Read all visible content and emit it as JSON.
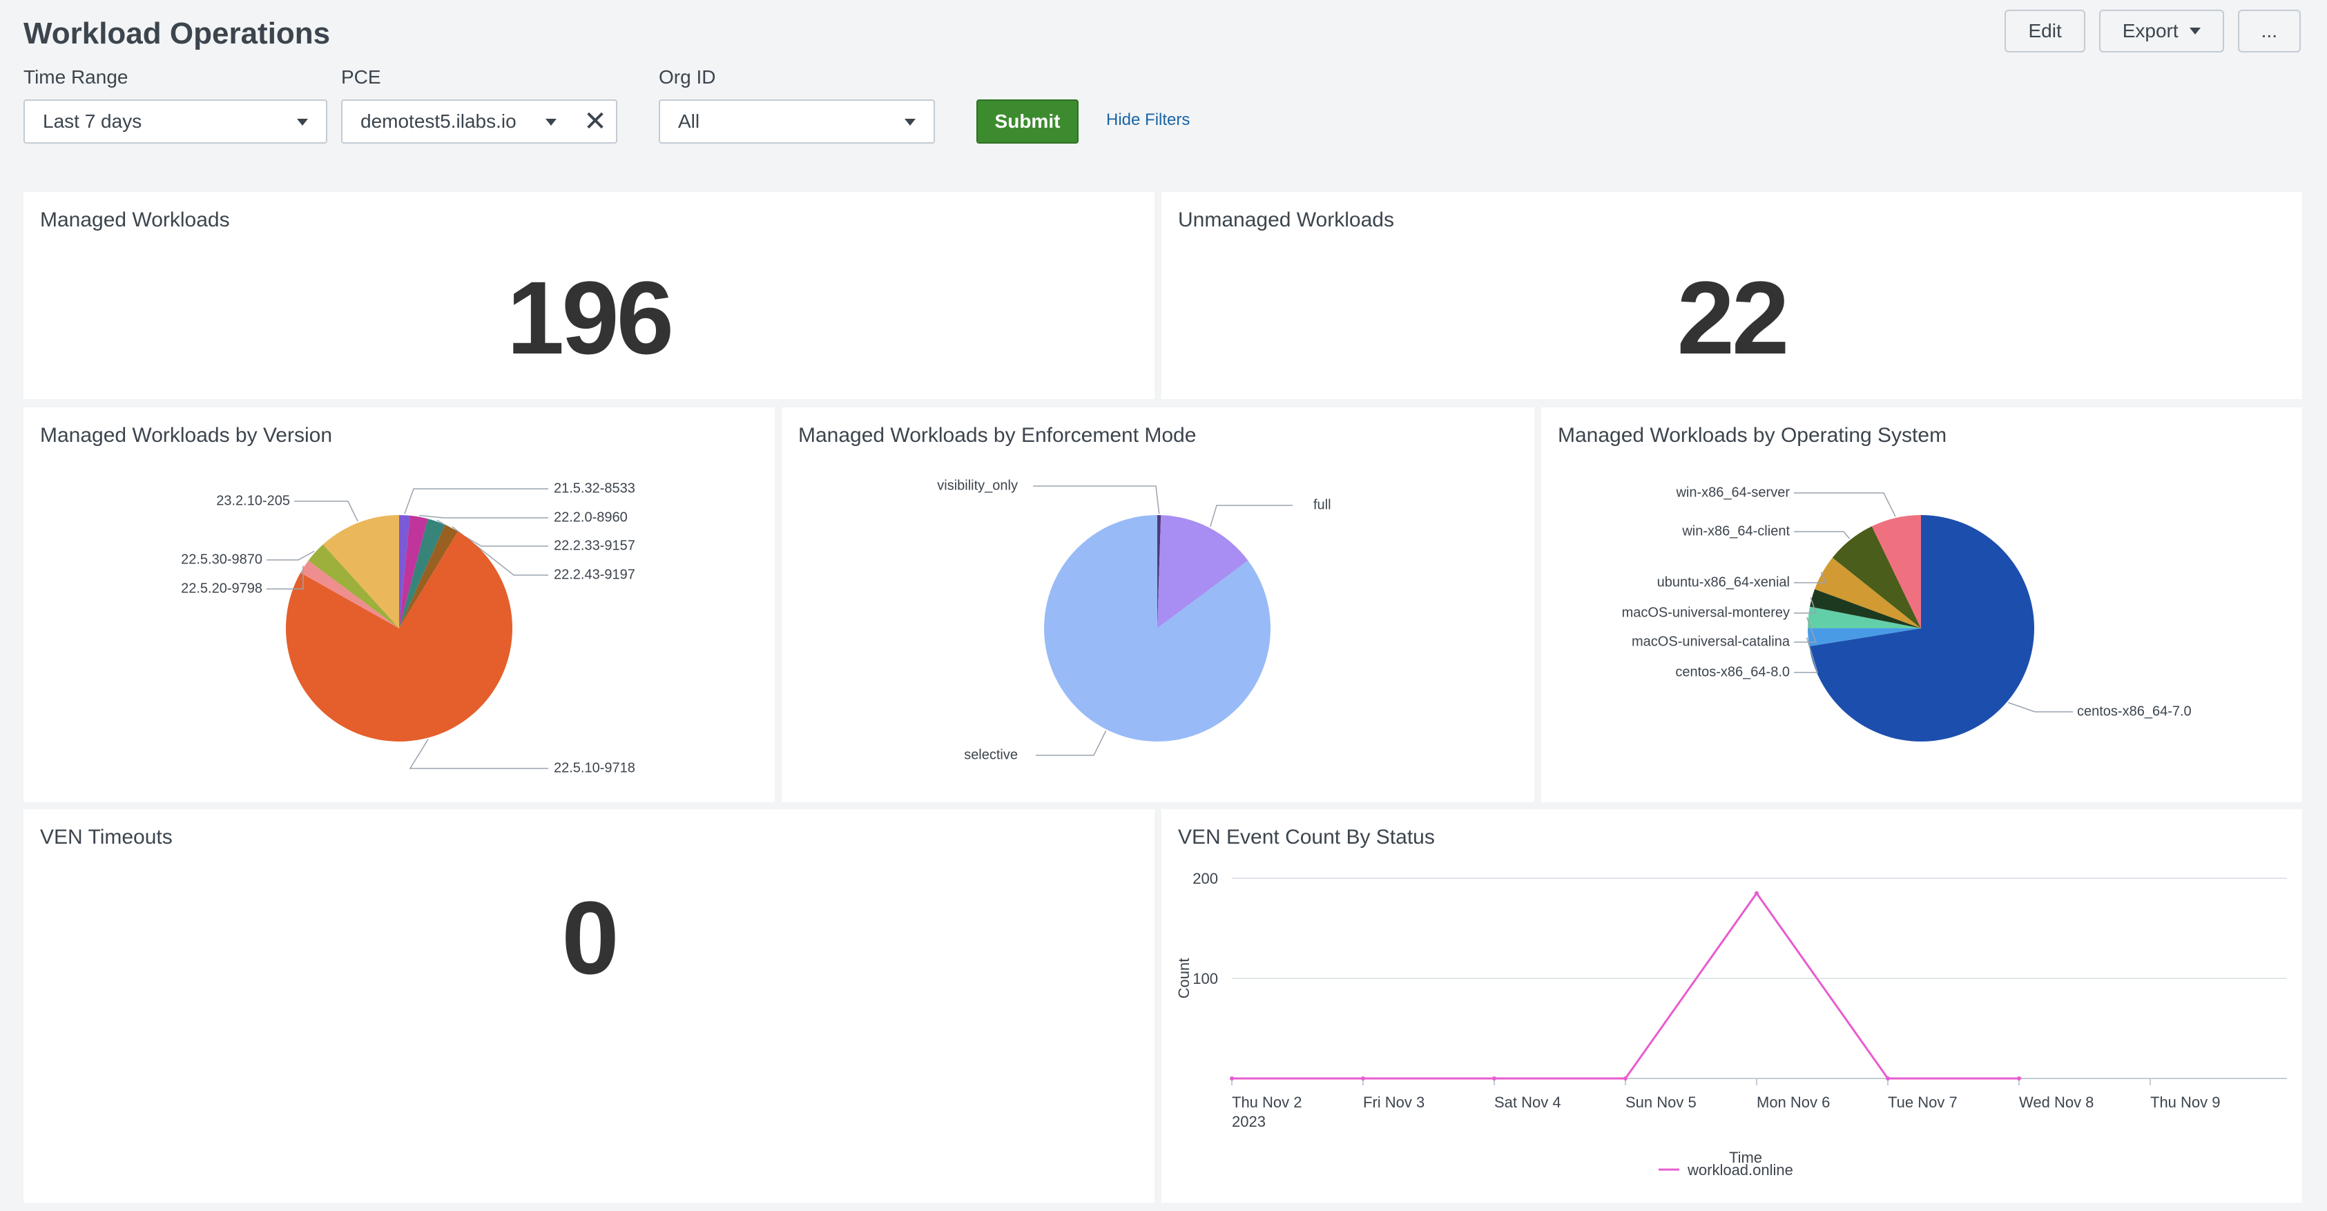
{
  "header": {
    "title": "Workload Operations",
    "edit_label": "Edit",
    "export_label": "Export",
    "more_label": "..."
  },
  "filters": {
    "time_range": {
      "label": "Time Range",
      "value": "Last 7 days"
    },
    "pce": {
      "label": "PCE",
      "value": "demotest5.ilabs.io"
    },
    "org_id": {
      "label": "Org ID",
      "value": "All"
    },
    "submit_label": "Submit",
    "hide_filters_label": "Hide Filters"
  },
  "panels": {
    "managed": {
      "title": "Managed Workloads",
      "value": "196"
    },
    "unmanaged": {
      "title": "Unmanaged Workloads",
      "value": "22"
    },
    "by_version": {
      "title": "Managed Workloads by Version"
    },
    "by_enforcement": {
      "title": "Managed Workloads by Enforcement Mode"
    },
    "by_os": {
      "title": "Managed Workloads by Operating System"
    },
    "ven_timeouts": {
      "title": "VEN Timeouts",
      "value": "0"
    },
    "ven_events": {
      "title": "VEN Event Count By Status"
    }
  },
  "colors": {
    "submit": "#3d8b2f",
    "link": "#1a65a6",
    "line_series": "#e85ccf"
  },
  "chart_data": [
    {
      "id": "version",
      "type": "pie",
      "slices": [
        {
          "label": "21.5.32-8533",
          "value": 3,
          "color": "#7a5ad6"
        },
        {
          "label": "22.2.0-8960",
          "value": 5,
          "color": "#c0359c"
        },
        {
          "label": "22.2.33-9157",
          "value": 5,
          "color": "#36847a"
        },
        {
          "label": "22.2.43-9197",
          "value": 4,
          "color": "#996022"
        },
        {
          "label": "22.5.10-9718",
          "value": 146,
          "color": "#e45f2b"
        },
        {
          "label": "22.5.20-9798",
          "value": 4,
          "color": "#ef8e8e"
        },
        {
          "label": "22.5.30-9870",
          "value": 6,
          "color": "#9cb03b"
        },
        {
          "label": "23.2.10-205",
          "value": 23,
          "color": "#eab75b"
        }
      ]
    },
    {
      "id": "enforcement",
      "type": "pie",
      "slices": [
        {
          "label": "visibility_only",
          "value": 1,
          "color": "#4f3a7a"
        },
        {
          "label": "full",
          "value": 28,
          "color": "#a88ef2"
        },
        {
          "label": "selective",
          "value": 167,
          "color": "#98bbf7"
        }
      ]
    },
    {
      "id": "os",
      "type": "pie",
      "slices": [
        {
          "label": "centos-x86_64-7.0",
          "value": 142,
          "color": "#1c4fad"
        },
        {
          "label": "centos-x86_64-8.0",
          "value": 5,
          "color": "#4a9be6"
        },
        {
          "label": "macOS-universal-catalina",
          "value": 6,
          "color": "#63cfa8"
        },
        {
          "label": "macOS-universal-monterey",
          "value": 5,
          "color": "#1d3a20"
        },
        {
          "label": "ubuntu-x86_64-xenial",
          "value": 10,
          "color": "#d19a33"
        },
        {
          "label": "win-x86_64-client",
          "value": 14,
          "color": "#4a5d1a"
        },
        {
          "label": "win-x86_64-server",
          "value": 14,
          "color": "#ef7180"
        }
      ]
    },
    {
      "id": "ven_events",
      "type": "line",
      "categories": [
        "Thu Nov 2",
        "Fri Nov 3",
        "Sat Nov 4",
        "Sun Nov 5",
        "Mon Nov 6",
        "Tue Nov 7",
        "Wed Nov 8",
        "Thu Nov 9"
      ],
      "first_tick_sublabel": "2023",
      "series": [
        {
          "name": "workload.online",
          "values": [
            0,
            0,
            0,
            0,
            185,
            0,
            0,
            null
          ]
        }
      ],
      "y_ticks": [
        100,
        200
      ],
      "ylim": [
        0,
        200
      ],
      "xlabel": "Time",
      "ylabel": "Count",
      "legend": "bottom",
      "grid": true
    }
  ]
}
